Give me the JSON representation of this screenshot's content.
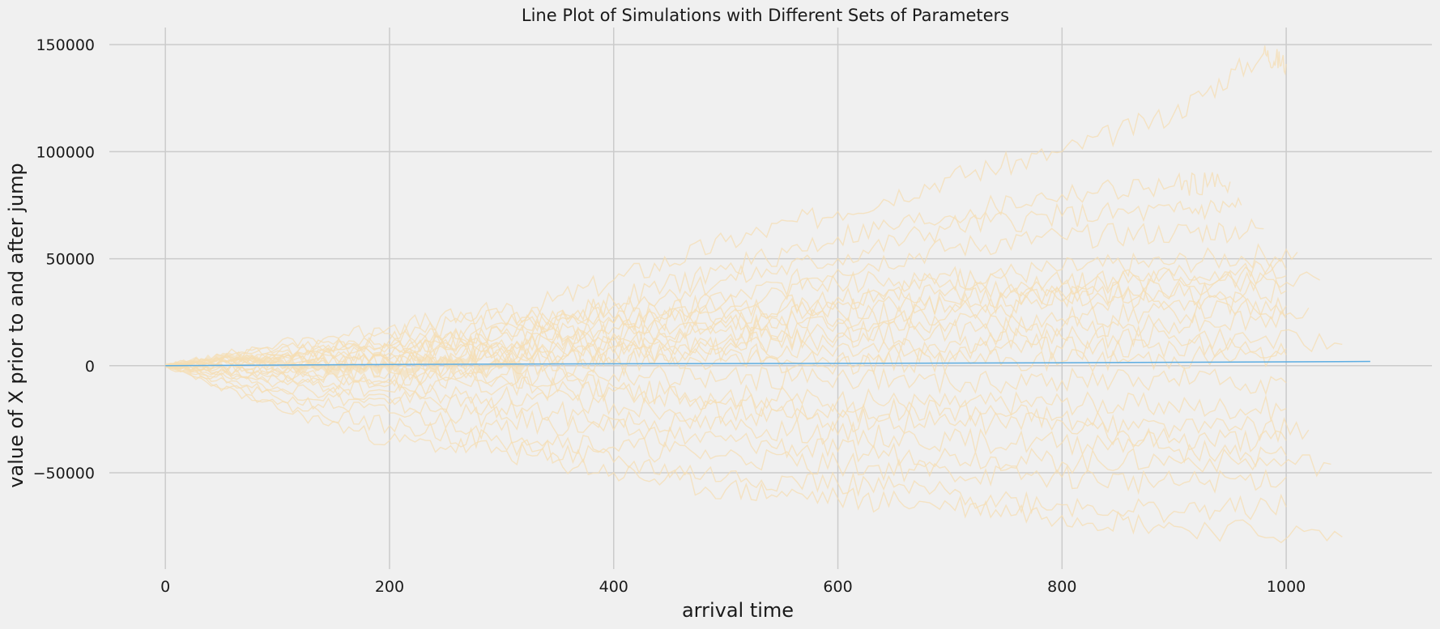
{
  "chart_data": {
    "type": "line",
    "title": "Line Plot of Simulations with Different Sets of Parameters",
    "xlabel": "arrival time",
    "ylabel": "value of X prior to and after jump",
    "xlim": [
      -50,
      1130
    ],
    "ylim": [
      -95000,
      158000
    ],
    "xticks": [
      0,
      200,
      400,
      600,
      800,
      1000
    ],
    "yticks": [
      -50000,
      0,
      50000,
      100000,
      150000
    ],
    "xtick_labels": [
      "0",
      "200",
      "400",
      "600",
      "800",
      "1000"
    ],
    "ytick_labels": [
      "−50000",
      "0",
      "50000",
      "100000",
      "150000"
    ],
    "grid": true,
    "legend": "none",
    "colors": {
      "background": "#f0f0f0",
      "grid": "#cbcbcb",
      "simulations": "#f5deb3",
      "mean": "#5dade2"
    },
    "series": [
      {
        "values": [
          [
            0,
            0
          ],
          [
            100,
            8000
          ],
          [
            200,
            15000
          ],
          [
            300,
            22000
          ],
          [
            400,
            40000
          ],
          [
            500,
            58000
          ],
          [
            600,
            72000
          ],
          [
            700,
            88000
          ],
          [
            800,
            100000
          ],
          [
            900,
            118000
          ],
          [
            980,
            146000
          ],
          [
            1000,
            141000
          ]
        ]
      },
      {
        "values": [
          [
            0,
            0
          ],
          [
            100,
            5000
          ],
          [
            200,
            9000
          ],
          [
            300,
            15000
          ],
          [
            400,
            30000
          ],
          [
            500,
            45000
          ],
          [
            600,
            60000
          ],
          [
            700,
            70000
          ],
          [
            800,
            80000
          ],
          [
            900,
            84000
          ],
          [
            950,
            86000
          ]
        ]
      },
      {
        "values": [
          [
            0,
            0
          ],
          [
            100,
            3000
          ],
          [
            200,
            8000
          ],
          [
            300,
            16000
          ],
          [
            400,
            28000
          ],
          [
            500,
            40000
          ],
          [
            600,
            50000
          ],
          [
            700,
            65000
          ],
          [
            800,
            70000
          ],
          [
            900,
            72000
          ],
          [
            960,
            75000
          ]
        ]
      },
      {
        "values": [
          [
            0,
            0
          ],
          [
            100,
            -3000
          ],
          [
            200,
            2000
          ],
          [
            300,
            10000
          ],
          [
            400,
            20000
          ],
          [
            500,
            30000
          ],
          [
            600,
            45000
          ],
          [
            700,
            55000
          ],
          [
            800,
            60000
          ],
          [
            900,
            62000
          ],
          [
            980,
            64000
          ]
        ]
      },
      {
        "values": [
          [
            0,
            0
          ],
          [
            100,
            6000
          ],
          [
            200,
            12000
          ],
          [
            300,
            20000
          ],
          [
            400,
            18000
          ],
          [
            500,
            25000
          ],
          [
            600,
            32000
          ],
          [
            700,
            40000
          ],
          [
            800,
            45000
          ],
          [
            900,
            48000
          ],
          [
            1010,
            53000
          ]
        ]
      },
      {
        "values": [
          [
            0,
            0
          ],
          [
            100,
            4000
          ],
          [
            200,
            9000
          ],
          [
            300,
            14000
          ],
          [
            400,
            20000
          ],
          [
            500,
            22000
          ],
          [
            600,
            30000
          ],
          [
            700,
            35000
          ],
          [
            800,
            38000
          ],
          [
            900,
            42000
          ],
          [
            1000,
            45000
          ]
        ]
      },
      {
        "values": [
          [
            0,
            0
          ],
          [
            100,
            2000
          ],
          [
            200,
            6000
          ],
          [
            300,
            12000
          ],
          [
            400,
            15000
          ],
          [
            500,
            18000
          ],
          [
            600,
            22000
          ],
          [
            700,
            28000
          ],
          [
            800,
            32000
          ],
          [
            900,
            36000
          ],
          [
            1030,
            40000
          ]
        ]
      },
      {
        "values": [
          [
            0,
            0
          ],
          [
            100,
            5000
          ],
          [
            200,
            4000
          ],
          [
            300,
            9000
          ],
          [
            400,
            12000
          ],
          [
            500,
            16000
          ],
          [
            600,
            20000
          ],
          [
            700,
            25000
          ],
          [
            800,
            30000
          ],
          [
            900,
            33000
          ],
          [
            1000,
            35000
          ]
        ]
      },
      {
        "values": [
          [
            0,
            0
          ],
          [
            100,
            1000
          ],
          [
            200,
            3000
          ],
          [
            300,
            5000
          ],
          [
            400,
            8000
          ],
          [
            500,
            12000
          ],
          [
            600,
            15000
          ],
          [
            700,
            20000
          ],
          [
            800,
            22000
          ],
          [
            900,
            25000
          ],
          [
            1020,
            27000
          ]
        ]
      },
      {
        "values": [
          [
            0,
            0
          ],
          [
            100,
            3000
          ],
          [
            200,
            2000
          ],
          [
            300,
            6000
          ],
          [
            400,
            9000
          ],
          [
            500,
            10000
          ],
          [
            600,
            13000
          ],
          [
            700,
            16000
          ],
          [
            800,
            18000
          ],
          [
            900,
            20000
          ],
          [
            1000,
            22000
          ]
        ]
      },
      {
        "values": [
          [
            0,
            0
          ],
          [
            100,
            -1000
          ],
          [
            200,
            1000
          ],
          [
            300,
            3000
          ],
          [
            400,
            6000
          ],
          [
            500,
            8000
          ],
          [
            600,
            9000
          ],
          [
            700,
            11000
          ],
          [
            800,
            13000
          ],
          [
            900,
            14000
          ],
          [
            1050,
            10000
          ]
        ]
      },
      {
        "values": [
          [
            0,
            0
          ],
          [
            100,
            2000
          ],
          [
            200,
            -2000
          ],
          [
            300,
            1000
          ],
          [
            400,
            3000
          ],
          [
            500,
            5000
          ],
          [
            600,
            4000
          ],
          [
            700,
            7000
          ],
          [
            800,
            8000
          ],
          [
            900,
            9000
          ],
          [
            1000,
            8000
          ]
        ]
      },
      {
        "values": [
          [
            0,
            0
          ],
          [
            100,
            -2000
          ],
          [
            200,
            -3000
          ],
          [
            300,
            -1000
          ],
          [
            400,
            1000
          ],
          [
            500,
            2000
          ],
          [
            600,
            1000
          ],
          [
            700,
            3000
          ],
          [
            800,
            2000
          ],
          [
            900,
            4000
          ],
          [
            1000,
            5000
          ]
        ]
      },
      {
        "values": [
          [
            0,
            0
          ],
          [
            100,
            -4000
          ],
          [
            200,
            -6000
          ],
          [
            300,
            -5000
          ],
          [
            400,
            -4000
          ],
          [
            500,
            -6000
          ],
          [
            600,
            -5000
          ],
          [
            700,
            -8000
          ],
          [
            800,
            -7000
          ],
          [
            900,
            -6000
          ],
          [
            1000,
            -8000
          ]
        ]
      },
      {
        "values": [
          [
            0,
            0
          ],
          [
            100,
            -6000
          ],
          [
            200,
            -9000
          ],
          [
            300,
            -10000
          ],
          [
            400,
            -12000
          ],
          [
            500,
            -14000
          ],
          [
            600,
            -16000
          ],
          [
            700,
            -18000
          ],
          [
            800,
            -17000
          ],
          [
            900,
            -19000
          ],
          [
            1000,
            -20000
          ]
        ]
      },
      {
        "values": [
          [
            0,
            0
          ],
          [
            100,
            -8000
          ],
          [
            200,
            -12000
          ],
          [
            300,
            -15000
          ],
          [
            400,
            -18000
          ],
          [
            500,
            -22000
          ],
          [
            600,
            -25000
          ],
          [
            700,
            -27000
          ],
          [
            800,
            -26000
          ],
          [
            900,
            -28000
          ],
          [
            1020,
            -30000
          ]
        ]
      },
      {
        "values": [
          [
            0,
            0
          ],
          [
            100,
            -10000
          ],
          [
            200,
            -15000
          ],
          [
            300,
            -20000
          ],
          [
            400,
            -25000
          ],
          [
            500,
            -28000
          ],
          [
            600,
            -32000
          ],
          [
            700,
            -35000
          ],
          [
            800,
            -36000
          ],
          [
            900,
            -34000
          ],
          [
            1000,
            -35000
          ]
        ]
      },
      {
        "values": [
          [
            0,
            0
          ],
          [
            100,
            -12000
          ],
          [
            200,
            -18000
          ],
          [
            300,
            -25000
          ],
          [
            400,
            -30000
          ],
          [
            500,
            -35000
          ],
          [
            600,
            -40000
          ],
          [
            700,
            -42000
          ],
          [
            800,
            -45000
          ],
          [
            900,
            -44000
          ],
          [
            1040,
            -46000
          ]
        ]
      },
      {
        "values": [
          [
            0,
            0
          ],
          [
            100,
            -15000
          ],
          [
            200,
            -22000
          ],
          [
            300,
            -30000
          ],
          [
            400,
            -38000
          ],
          [
            500,
            -42000
          ],
          [
            600,
            -46000
          ],
          [
            700,
            -50000
          ],
          [
            800,
            -52000
          ],
          [
            900,
            -55000
          ],
          [
            1000,
            -52000
          ]
        ]
      },
      {
        "values": [
          [
            0,
            0
          ],
          [
            100,
            -18000
          ],
          [
            200,
            -28000
          ],
          [
            300,
            -36000
          ],
          [
            400,
            -45000
          ],
          [
            500,
            -52000
          ],
          [
            600,
            -55000
          ],
          [
            700,
            -60000
          ],
          [
            800,
            -65000
          ],
          [
            900,
            -68000
          ],
          [
            1000,
            -66000
          ]
        ]
      },
      {
        "values": [
          [
            0,
            0
          ],
          [
            100,
            -20000
          ],
          [
            200,
            -35000
          ],
          [
            300,
            -40000
          ],
          [
            400,
            -50000
          ],
          [
            500,
            -58000
          ],
          [
            600,
            -62000
          ],
          [
            700,
            -65000
          ],
          [
            800,
            -70000
          ],
          [
            900,
            -75000
          ],
          [
            1050,
            -80000
          ]
        ]
      },
      {
        "values": [
          [
            0,
            0
          ],
          [
            100,
            10000
          ],
          [
            200,
            18000
          ],
          [
            300,
            25000
          ],
          [
            400,
            22000
          ],
          [
            500,
            30000
          ],
          [
            600,
            38000
          ],
          [
            700,
            42000
          ],
          [
            800,
            38000
          ],
          [
            900,
            40000
          ],
          [
            1000,
            42000
          ]
        ]
      },
      {
        "values": [
          [
            0,
            0
          ],
          [
            100,
            7000
          ],
          [
            200,
            10000
          ],
          [
            300,
            8000
          ],
          [
            400,
            14000
          ],
          [
            500,
            20000
          ],
          [
            600,
            26000
          ],
          [
            700,
            30000
          ],
          [
            800,
            34000
          ],
          [
            900,
            30000
          ],
          [
            1000,
            28000
          ]
        ]
      },
      {
        "values": [
          [
            0,
            0
          ],
          [
            100,
            -5000
          ],
          [
            200,
            -8000
          ],
          [
            300,
            -4000
          ],
          [
            400,
            -10000
          ],
          [
            500,
            -18000
          ],
          [
            600,
            -22000
          ],
          [
            700,
            -20000
          ],
          [
            800,
            -24000
          ],
          [
            900,
            -40000
          ],
          [
            1000,
            -42000
          ]
        ]
      }
    ],
    "mean_series": {
      "values": [
        [
          0,
          0
        ],
        [
          200,
          600
        ],
        [
          400,
          900
        ],
        [
          600,
          1100
        ],
        [
          800,
          1400
        ],
        [
          1000,
          1800
        ],
        [
          1075,
          2000
        ]
      ]
    }
  }
}
